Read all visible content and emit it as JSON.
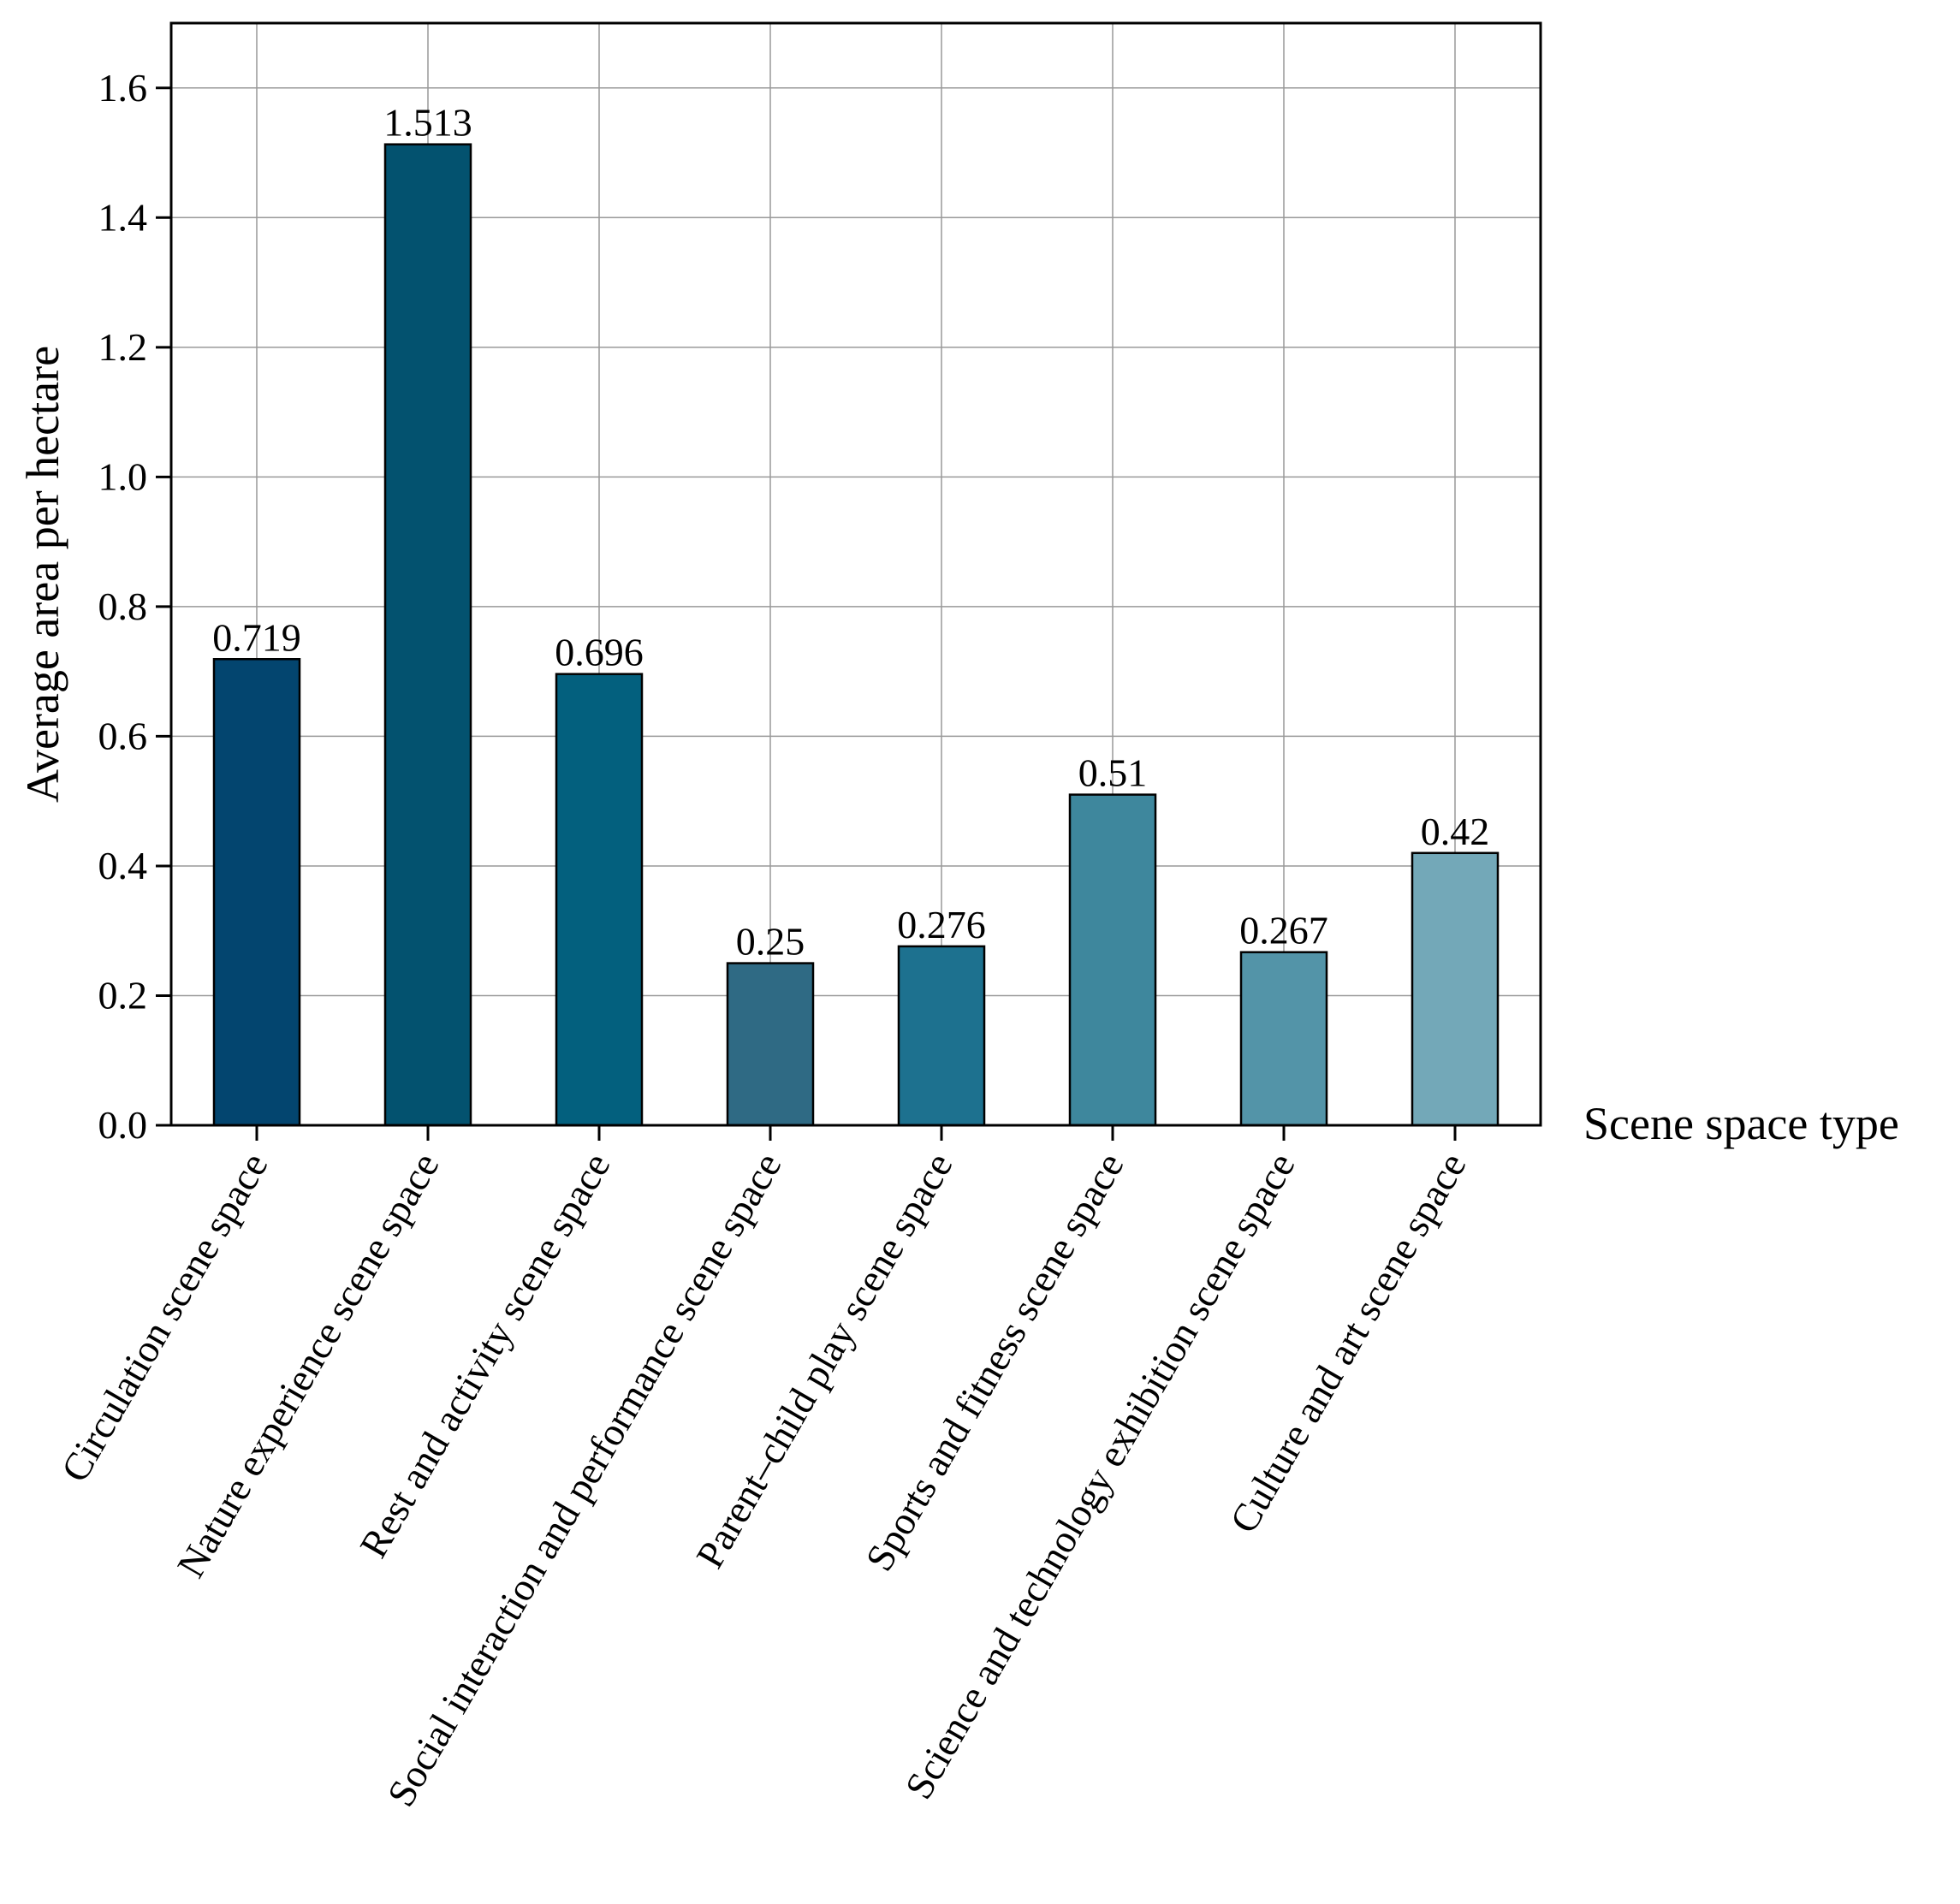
{
  "chart_data": {
    "type": "bar",
    "title": "",
    "xlabel": "Scene space type",
    "ylabel": "Average area per hectare",
    "ylim": [
      0,
      1.7
    ],
    "yticks": [
      "0.0",
      "0.2",
      "0.4",
      "0.6",
      "0.8",
      "1.0",
      "1.2",
      "1.4",
      "1.6"
    ],
    "grid": true,
    "categories": [
      "Circulation scene space",
      "Nature experience scene space",
      "Rest and activity scene space",
      "Social interaction and performance scene space",
      "Parent–child play scene space",
      "Sports and fitness scene space",
      "Science and technology exhibition scene space",
      "Culture and art scene space"
    ],
    "values": [
      0.719,
      1.513,
      0.696,
      0.25,
      0.276,
      0.51,
      0.267,
      0.42
    ],
    "value_labels": [
      "0.719",
      "1.513",
      "0.696",
      "0.25",
      "0.276",
      "0.51",
      "0.267",
      "0.42"
    ],
    "colors": [
      "#03456f",
      "#03526f",
      "#03607e",
      "#2f6a84",
      "#1d718f",
      "#3e879d",
      "#5394a8",
      "#73a8b8"
    ]
  }
}
